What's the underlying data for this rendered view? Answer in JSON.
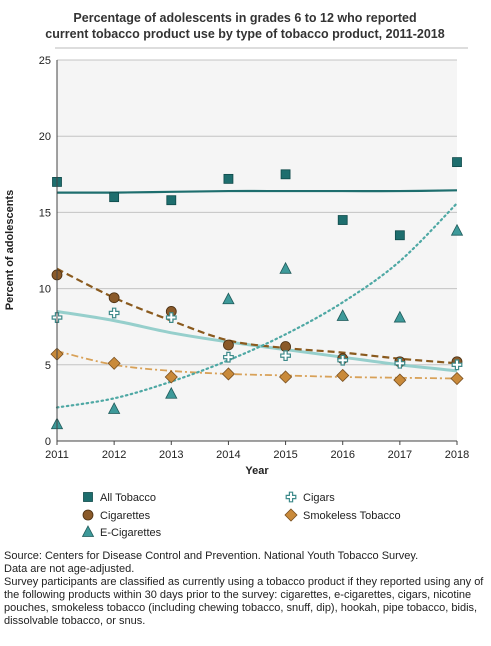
{
  "title_lines": [
    "Percentage of adolescents in grades 6 to 12 who reported",
    "current tobacco product use by type of tobacco product, 2011-2018"
  ],
  "chart_data": {
    "type": "scatter",
    "title": "Percentage of adolescents in grades 6 to 12 who reported current tobacco product use by type of tobacco product, 2011-2018",
    "xlabel": "Year",
    "ylabel": "Percent of adolescents",
    "x": [
      2011,
      2012,
      2013,
      2014,
      2015,
      2016,
      2017,
      2018
    ],
    "x_ticks": [
      "2011",
      "2012",
      "2013",
      "2014",
      "2015",
      "2016",
      "2017",
      "2018"
    ],
    "xlim": [
      2011,
      2018
    ],
    "ylim": [
      0,
      25
    ],
    "y_ticks": [
      "0",
      "5",
      "10",
      "15",
      "20",
      "25"
    ],
    "grid": true,
    "legend_position": "bottom",
    "series": [
      {
        "name": "All Tobacco",
        "marker": "square",
        "color": "#1e6e6e",
        "line_style": "solid",
        "values": [
          17.0,
          16.0,
          15.8,
          17.2,
          17.5,
          14.5,
          13.5,
          18.3
        ],
        "trend": [
          16.3,
          16.3,
          16.35,
          16.4,
          16.4,
          16.4,
          16.4,
          16.45
        ]
      },
      {
        "name": "Cigarettes",
        "marker": "circle",
        "color": "#8a5a2a",
        "line_style": "dashed",
        "values": [
          10.9,
          9.4,
          8.5,
          6.3,
          6.2,
          5.4,
          5.2,
          5.2
        ],
        "trend": [
          11.3,
          9.4,
          7.9,
          6.6,
          6.1,
          5.8,
          5.4,
          5.1
        ]
      },
      {
        "name": "E-Cigarettes",
        "marker": "triangle",
        "color": "#3e9a9a",
        "line_style": "dotted",
        "values": [
          1.1,
          2.1,
          3.1,
          9.3,
          11.3,
          8.2,
          8.1,
          13.8
        ],
        "trend": [
          2.2,
          2.8,
          3.9,
          5.3,
          7.0,
          9.1,
          11.8,
          15.6
        ]
      },
      {
        "name": "Smokeless Tobacco",
        "marker": "diamond",
        "color": "#c98a3a",
        "line_style": "dashdot",
        "values": [
          5.7,
          5.1,
          4.2,
          4.4,
          4.2,
          4.3,
          4.0,
          4.1
        ],
        "trend": [
          5.9,
          5.0,
          4.6,
          4.4,
          4.3,
          4.2,
          4.15,
          4.1
        ]
      },
      {
        "name": "Cigars",
        "marker": "cross",
        "color": "#3e8a8a",
        "line_style": "solid-thick",
        "values": [
          8.1,
          8.4,
          8.1,
          5.5,
          5.6,
          5.3,
          5.1,
          5.0
        ],
        "trend": [
          8.5,
          7.9,
          7.1,
          6.5,
          6.0,
          5.5,
          5.0,
          4.6
        ]
      }
    ]
  },
  "legend_order": [
    0,
    1,
    2,
    4,
    3
  ],
  "footnote": [
    "Source: Centers for Disease Control and Prevention. National Youth Tobacco Survey.",
    "Data are not age-adjusted.",
    "Survey participants are classified as currently using a tobacco product if they reported using any of the following products within 30 days prior to the survey: cigarettes, e-cigarettes, cigars, nicotine pouches, smokeless tobacco (including chewing tobacco, snuff, dip), hookah, pipe tobacco, bidis, dissolvable tobacco, or snus."
  ]
}
